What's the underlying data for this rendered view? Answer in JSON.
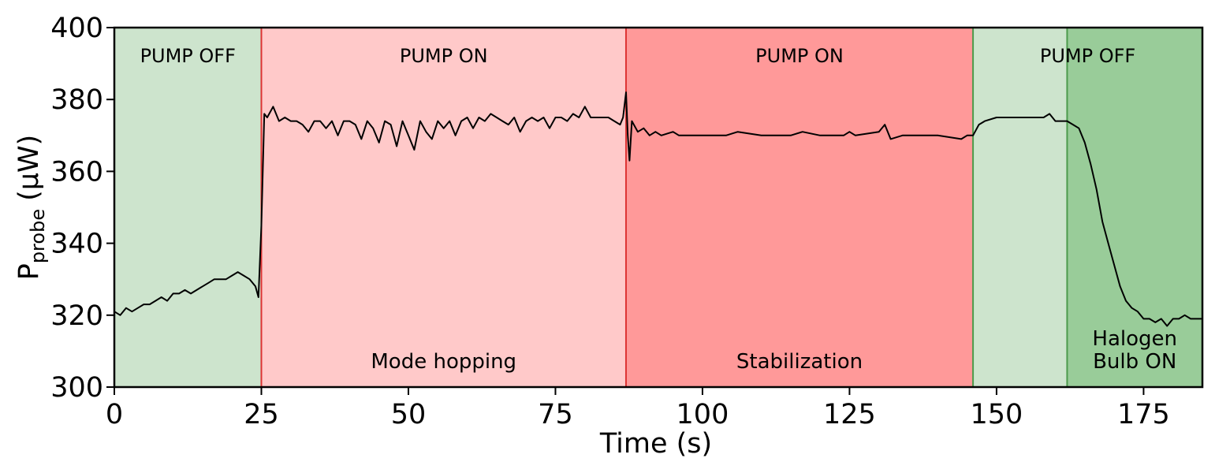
{
  "chart_data": {
    "type": "line",
    "xlabel": "Time (s)",
    "ylabel": [
      "P",
      "probe",
      "(μW)"
    ],
    "xlim": [
      0,
      185
    ],
    "ylim": [
      300,
      400
    ],
    "xticks": [
      0,
      25,
      50,
      75,
      100,
      125,
      150,
      175
    ],
    "yticks": [
      300,
      320,
      340,
      360,
      380,
      400
    ],
    "regions": [
      {
        "start": 0,
        "end": 25,
        "color": "#cde4cd",
        "edge": "#7fbf7f"
      },
      {
        "start": 25,
        "end": 87,
        "color": "#ffc9c9",
        "edge": "#dd3333",
        "note": [
          "Mode hopping"
        ]
      },
      {
        "start": 87,
        "end": 146,
        "color": "#ff9999",
        "edge": "#dd3333",
        "note": [
          "Stabilization"
        ]
      },
      {
        "start": 146,
        "end": 162,
        "color": "#cde4cd",
        "edge": "#4c9a4c"
      },
      {
        "start": 162,
        "end": 185,
        "color": "#99cc99",
        "edge": "#4c9a4c",
        "note": [
          "Halogen",
          "Bulb ON"
        ]
      }
    ],
    "phases": [
      {
        "label": "PUMP OFF",
        "start": 0,
        "end": 25
      },
      {
        "label": "PUMP ON",
        "start": 25,
        "end": 87
      },
      {
        "label": "PUMP ON",
        "start": 87,
        "end": 146
      },
      {
        "label": "PUMP OFF",
        "start": 146,
        "end": 185
      }
    ],
    "color": "#000000",
    "x": [
      0,
      1,
      2,
      3,
      4,
      5,
      6,
      7,
      8,
      9,
      10,
      11,
      12,
      13,
      14,
      15,
      16,
      17,
      18,
      19,
      20,
      21,
      22,
      23,
      24,
      24.5,
      25,
      25.5,
      26,
      27,
      28,
      29,
      30,
      31,
      32,
      33,
      34,
      35,
      36,
      37,
      38,
      39,
      40,
      41,
      42,
      43,
      44,
      45,
      46,
      47,
      48,
      49,
      50,
      51,
      52,
      53,
      54,
      55,
      56,
      57,
      58,
      59,
      60,
      61,
      62,
      63,
      64,
      65,
      66,
      67,
      68,
      69,
      70,
      71,
      72,
      73,
      74,
      75,
      76,
      77,
      78,
      79,
      80,
      81,
      82,
      83,
      84,
      85,
      86,
      86.5,
      87,
      87.3,
      87.6,
      88,
      89,
      90,
      91,
      92,
      93,
      95,
      96,
      100,
      104,
      106,
      110,
      115,
      117,
      120,
      124,
      125,
      126,
      130,
      131,
      132,
      134,
      140,
      144,
      145,
      146,
      147,
      148,
      150,
      155,
      158,
      159,
      160,
      162,
      163,
      164,
      165,
      166,
      167,
      168,
      169,
      170,
      171,
      172,
      173,
      174,
      175,
      176,
      177,
      178,
      179,
      180,
      181,
      182,
      183,
      184,
      185
    ],
    "values": [
      321,
      320,
      322,
      321,
      322,
      323,
      323,
      324,
      325,
      324,
      326,
      326,
      327,
      326,
      327,
      328,
      329,
      330,
      330,
      330,
      331,
      332,
      331,
      330,
      328,
      325,
      345,
      376,
      375,
      378,
      374,
      375,
      374,
      374,
      373,
      371,
      374,
      374,
      372,
      374,
      370,
      374,
      374,
      373,
      369,
      374,
      372,
      368,
      374,
      373,
      367,
      374,
      370,
      366,
      374,
      371,
      369,
      374,
      372,
      374,
      370,
      374,
      375,
      372,
      375,
      374,
      376,
      375,
      374,
      373,
      375,
      371,
      374,
      375,
      374,
      375,
      372,
      375,
      375,
      374,
      376,
      375,
      378,
      375,
      375,
      375,
      375,
      374,
      373,
      375,
      382,
      370,
      363,
      374,
      371,
      372,
      370,
      371,
      370,
      371,
      370,
      370,
      370,
      371,
      370,
      370,
      371,
      370,
      370,
      371,
      370,
      371,
      373,
      369,
      370,
      370,
      369,
      370,
      370,
      373,
      374,
      375,
      375,
      375,
      376,
      374,
      374,
      373,
      372,
      368,
      362,
      355,
      346,
      340,
      334,
      328,
      324,
      322,
      321,
      319,
      319,
      318,
      319,
      317,
      319,
      319,
      320,
      319,
      319,
      319
    ]
  }
}
